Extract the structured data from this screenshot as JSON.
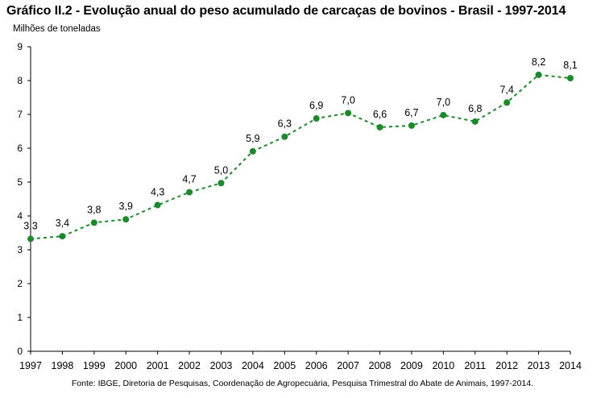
{
  "chart_data": {
    "type": "line",
    "title": "Gráfico II.2 - Evolução anual do peso acumulado de carcaças de bovinos - Brasil - 1997-2014",
    "ylabel": "Milhões de toneladas",
    "xlabel": "",
    "source": "Fonte: IBGE, Diretoria de Pesquisas, Coordenação de Agropecuária, Pesquisa Trimestral do Abate de Animais, 1997-2014.",
    "ylim": [
      0,
      9
    ],
    "yticks": [
      0,
      1,
      2,
      3,
      4,
      5,
      6,
      7,
      8,
      9
    ],
    "grid": false,
    "legend": "none",
    "line_style": "dashed",
    "color": "#1b8a2a",
    "categories": [
      "1997",
      "1998",
      "1999",
      "2000",
      "2001",
      "2002",
      "2003",
      "2004",
      "2005",
      "2006",
      "2007",
      "2008",
      "2009",
      "2010",
      "2011",
      "2012",
      "2013",
      "2014"
    ],
    "values": [
      3.32,
      3.4,
      3.8,
      3.9,
      4.32,
      4.7,
      4.97,
      5.91,
      6.34,
      6.88,
      7.04,
      6.62,
      6.67,
      6.98,
      6.79,
      7.35,
      8.17,
      8.07
    ],
    "data_labels": [
      "3,3",
      "3,4",
      "3,8",
      "3,9",
      "4,3",
      "4,7",
      "5,0",
      "5,9",
      "6,3",
      "6,9",
      "7,0",
      "6,6",
      "6,7",
      "7,0",
      "6,8",
      "7,4",
      "8,2",
      "8,1"
    ]
  }
}
